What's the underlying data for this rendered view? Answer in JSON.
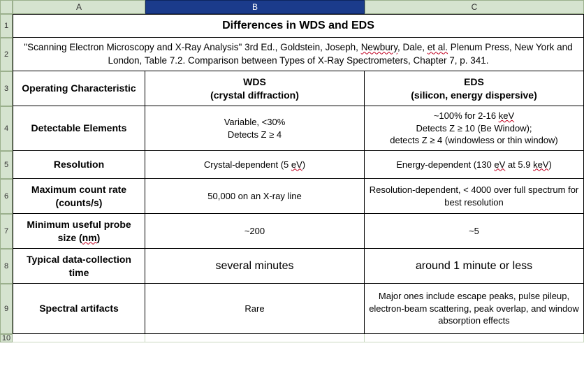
{
  "columns": {
    "A": "A",
    "B": "B",
    "C": "C"
  },
  "rownums": [
    "1",
    "2",
    "3",
    "4",
    "5",
    "6",
    "7",
    "8",
    "9",
    "10"
  ],
  "title": "Differences in WDS and EDS",
  "reference": {
    "pre": "\"Scanning Electron Microscopy and X-Ray Analysis\" 3rd Ed., Goldstein, Joseph, ",
    "newbury": "Newbury",
    "mid1": ", Dale, ",
    "etal": "et al.",
    "mid2": " Plenum Press, New York and London, Table 7.2. Comparison between Types of X-Ray Spectrometers, Chapter 7, p. 341."
  },
  "headers": {
    "col1": "Operating Characteristic",
    "col2_l1": "WDS",
    "col2_l2": "(crystal diffraction)",
    "col3_l1": "EDS",
    "col3_l2": "(silicon, energy dispersive)"
  },
  "rows": {
    "detectable": {
      "label": "Detectable Elements",
      "wds_l1": "Variable, <30%",
      "wds_l2": "Detects Z ≥ 4",
      "eds_l1_pre": "~100% for 2-16 ",
      "eds_l1_kev": "keV",
      "eds_l2": "Detects Z ≥ 10 (Be Window);",
      "eds_l3": "detects Z ≥ 4 (windowless or thin window)"
    },
    "resolution": {
      "label": "Resolution",
      "wds_pre": "Crystal-dependent (5 ",
      "wds_ev": "eV",
      "wds_post": ")",
      "eds_pre": "Energy-dependent (130 ",
      "eds_ev": "eV",
      "eds_mid": " at 5.9 ",
      "eds_kev": "keV",
      "eds_post": ")"
    },
    "maxcount": {
      "label_l1": "Maximum count rate",
      "label_l2": "(counts/s)",
      "wds": "50,000 on an X-ray line",
      "eds": "Resolution-dependent, < 4000 over full spectrum for best resolution"
    },
    "probesize": {
      "label_l1": "Minimum useful probe",
      "label_l2_pre": "size (",
      "label_l2_nm": "nm",
      "label_l2_post": ")",
      "wds": "~200",
      "eds": "~5"
    },
    "datatime": {
      "label_l1": "Typical data-collection",
      "label_l2": "time",
      "wds": "several minutes",
      "eds": "around 1 minute or less"
    },
    "artifacts": {
      "label": "Spectral artifacts",
      "wds": "Rare",
      "eds": "Major ones include escape peaks, pulse pileup, electron-beam scattering, peak overlap, and window absorption effects"
    }
  },
  "colors": {
    "header_bg": "#d5e3cf",
    "header_sel_bg": "#1b3b8b",
    "grid": "#c9d8c0",
    "tbl_border": "#000000",
    "squiggle": "#c00020"
  }
}
